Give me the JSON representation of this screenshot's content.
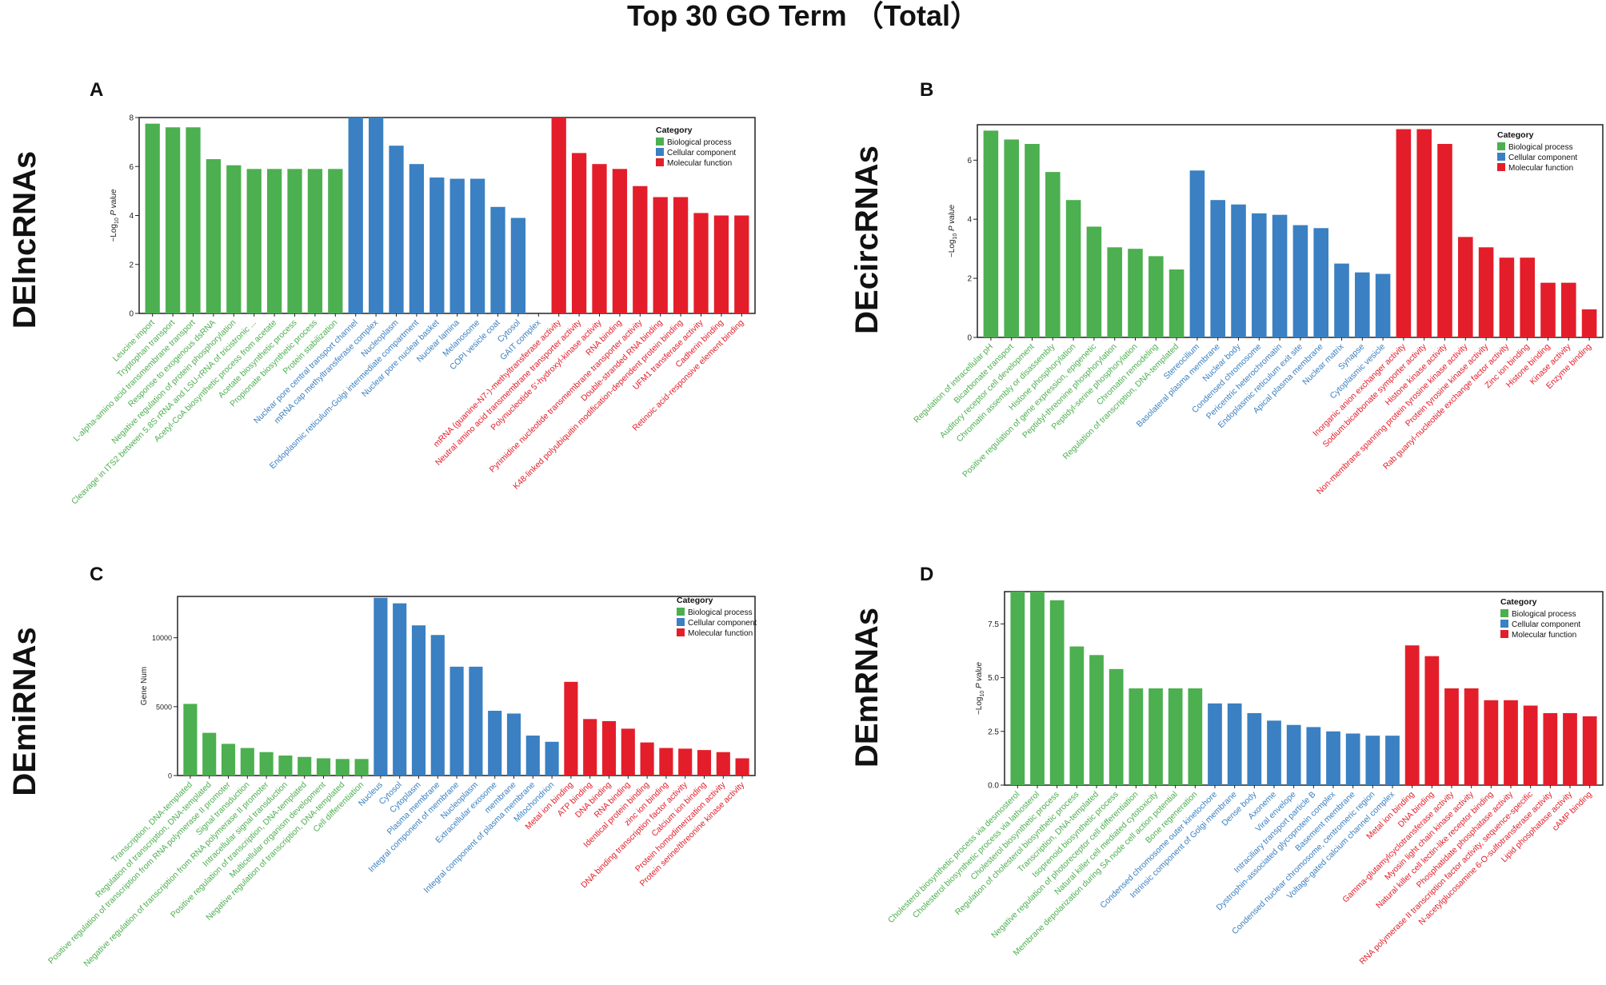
{
  "figure_title": "Top 30 GO Term （Total）",
  "colors": {
    "Biological process": "#4CAF50",
    "Cellular component": "#3A80C2",
    "Molecular function": "#E31E2A",
    "Cellular": "#3A80C2"
  },
  "chart_data": [
    {
      "type": "bar",
      "panel_label": "A",
      "side_label": "DElncRNAs",
      "ylabel_prefix": "−Log",
      "ylabel_sub": "10",
      "ylabel_suffix": " P value",
      "ylim": [
        0,
        8
      ],
      "yticks": [
        0,
        2,
        4,
        6,
        8
      ],
      "legend_title": "Category",
      "legend_items": [
        "Biological process",
        "Cellular component",
        "Molecular function"
      ],
      "categories": [
        "Leucine import",
        "Tryptophan transport",
        "L-alpha-amino acid transmembrane transport",
        "Response to exogenous dsRNA",
        "Negative regulation of protein phosphorylation",
        "Cleavage in ITS2 between 5.8S rRNA and LSU-rRNA of tricistronic ...",
        "Acetyl-CoA biosynthetic process from acetate",
        "Acetate biosynthetic process",
        "Propionate biosynthetic process",
        "Protein stabilization",
        "Nuclear pore central transport channel",
        "mRNA cap methyltransferase complex",
        "Nucleoplasm",
        "Endoplasmic reticulum-Golgi intermediate compartment",
        "Nuclear pore nuclear basket",
        "Nuclear lamina",
        "Melanosome",
        "COPI vesicle coat",
        "Cytosol",
        "GAIT complex",
        "mRNA (guanine-N7-)-methyltransferase activity",
        "Neutral amino acid transmembrane transporter activity",
        "Polynucleotide 5'-hydroxyl-kinase activity",
        "RNA binding",
        "Pyrimidine nucleotide transmembrane transporter activity",
        "Double-stranded RNA binding",
        "K48-linked polyubiquitin modification-dependent protein binding",
        "UFM1 transferase activity",
        "Cadherin binding",
        "Retinoic acid-responsive element binding"
      ],
      "values": [
        7.75,
        7.6,
        7.6,
        6.3,
        6.05,
        5.9,
        5.9,
        5.9,
        5.9,
        5.9,
        8.1,
        8.1,
        6.85,
        6.1,
        5.55,
        5.5,
        5.5,
        4.35,
        3.9,
        0,
        8.1,
        6.55,
        6.1,
        5.9,
        5.2,
        4.75,
        4.75,
        4.1,
        4.0,
        4.0
      ],
      "groups": [
        "Biological process",
        "Biological process",
        "Biological process",
        "Biological process",
        "Biological process",
        "Biological process",
        "Biological process",
        "Biological process",
        "Biological process",
        "Biological process",
        "Cellular component",
        "Cellular component",
        "Cellular component",
        "Cellular component",
        "Cellular component",
        "Cellular component",
        "Cellular component",
        "Cellular component",
        "Cellular component",
        "Cellular component",
        "Molecular function",
        "Molecular function",
        "Molecular function",
        "Molecular function",
        "Molecular function",
        "Molecular function",
        "Molecular function",
        "Molecular function",
        "Molecular function",
        "Molecular function"
      ]
    },
    {
      "type": "bar",
      "panel_label": "B",
      "side_label": "DEcircRNAs",
      "ylabel_prefix": "−Log",
      "ylabel_sub": "10",
      "ylabel_suffix": " P value",
      "ylim": [
        0,
        7.2
      ],
      "yticks": [
        0,
        2,
        4,
        6
      ],
      "legend_title": "Category",
      "legend_items": [
        "Biological process",
        "Cellular component",
        "Molecular function"
      ],
      "categories": [
        "Regulation of intracellular pH",
        "Bicarbonate transport",
        "Auditory receptor cell development",
        "Chromatin assembly or disassembly",
        "Histone phosphorylation",
        "Positive regulation of gene expression, epigenetic",
        "Peptidyl-threonine phosphorylation",
        "Peptidyl-serine phosphorylation",
        "Chromatin remodeling",
        "Regulation of transcription, DNA-templated",
        "Stereocilium",
        "Basolateral plasma membrane",
        "Nuclear body",
        "Condensed chromosome",
        "Pericentric heterochromatin",
        "Endoplasmic reticulum exit site",
        "Apical plasma membrane",
        "Nuclear matrix",
        "Synapse",
        "Cytoplasmic vesicle",
        "Inorganic anion exchanger activity",
        "Sodium:bicarbonate symporter activity",
        "Histone kinase activity",
        "Non-membrane spanning protein tyrosine kinase activity",
        "Protein tyrosine kinase activity",
        "Rab guanyl-nucleotide exchange factor activity",
        "Zinc ion binding",
        "Histone binding",
        "Kinase activity",
        "Enzyme binding"
      ],
      "values": [
        7.0,
        6.7,
        6.55,
        5.6,
        4.65,
        3.75,
        3.05,
        3.0,
        2.75,
        2.3,
        5.65,
        4.65,
        4.5,
        4.2,
        4.15,
        3.8,
        3.7,
        2.5,
        2.2,
        2.15,
        7.05,
        7.05,
        6.55,
        3.4,
        3.05,
        2.7,
        2.7,
        1.85,
        1.85,
        0.95
      ],
      "groups": [
        "Biological process",
        "Biological process",
        "Biological process",
        "Biological process",
        "Biological process",
        "Biological process",
        "Biological process",
        "Biological process",
        "Biological process",
        "Biological process",
        "Cellular component",
        "Cellular component",
        "Cellular component",
        "Cellular component",
        "Cellular component",
        "Cellular component",
        "Cellular component",
        "Cellular component",
        "Cellular component",
        "Cellular component",
        "Molecular function",
        "Molecular function",
        "Molecular function",
        "Molecular function",
        "Molecular function",
        "Molecular function",
        "Molecular function",
        "Molecular function",
        "Molecular function",
        "Molecular function"
      ]
    },
    {
      "type": "bar",
      "panel_label": "C",
      "side_label": "DEmiRNAs",
      "ylabel": "Gene Num",
      "ylim": [
        0,
        13000
      ],
      "yticks": [
        0,
        5000,
        10000
      ],
      "legend_title": "Category",
      "legend_items": [
        "Biological process",
        "Cellular component",
        "Molecular function"
      ],
      "categories": [
        "Transcription, DNA-templated",
        "Regulation of transcription, DNA-templated",
        "Positive regulation of transcription from RNA polymerase II promoter",
        "Signal transduction",
        "Negative regulation of transcription from RNA polymerase II promoter",
        "Intracellular signal transduction",
        "Positive regulation of transcription, DNA-templated",
        "Multicellular organism development",
        "Negative regulation of transcription, DNA-templated",
        "Cell differentiation",
        "Nucleus",
        "Cytosol",
        "Cytoplasm",
        "Plasma membrane",
        "Integral component of membrane",
        "Nucleoplasm",
        "Extracellular exosome",
        "membrane",
        "Integral component of plasma membrane",
        "Mitochondrion",
        "Metal ion binding",
        "ATP binding",
        "DNA binding",
        "RNA binding",
        "Identical protein binding",
        "zinc ion binding",
        "DNA binding transcription factor activity",
        "Calcium ion binding",
        "Protein homodimerization activity",
        "Protein serine/threonine kinase activity"
      ],
      "values": [
        5200,
        3100,
        2300,
        2000,
        1700,
        1450,
        1350,
        1250,
        1200,
        1200,
        12900,
        12500,
        10900,
        10200,
        7900,
        7900,
        4700,
        4500,
        2900,
        2450,
        6800,
        4100,
        3950,
        3400,
        2400,
        2000,
        1950,
        1850,
        1700,
        1250
      ],
      "groups": [
        "Biological process",
        "Biological process",
        "Biological process",
        "Biological process",
        "Biological process",
        "Biological process",
        "Biological process",
        "Biological process",
        "Biological process",
        "Biological process",
        "Cellular component",
        "Cellular component",
        "Cellular component",
        "Cellular component",
        "Cellular component",
        "Cellular component",
        "Cellular component",
        "Cellular component",
        "Cellular component",
        "Cellular component",
        "Molecular function",
        "Molecular function",
        "Molecular function",
        "Molecular function",
        "Molecular function",
        "Molecular function",
        "Molecular function",
        "Molecular function",
        "Molecular function",
        "Molecular function"
      ]
    },
    {
      "type": "bar",
      "panel_label": "D",
      "side_label": "DEmRNAs",
      "ylabel_prefix": "−Log",
      "ylabel_sub": "10",
      "ylabel_suffix": " P value",
      "ylim": [
        0,
        9.0
      ],
      "yticks": [
        0.0,
        2.5,
        5.0,
        7.5
      ],
      "ytick_labels": [
        "0.0",
        "2.5",
        "5.0",
        "7.5"
      ],
      "legend_title": "Category",
      "legend_items": [
        "Biological process",
        "Cellular component",
        "Molecular function"
      ],
      "categories": [
        "Cholesterol biosynthetic process via desmosterol",
        "Cholesterol biosynthetic process via lathosterol",
        "Cholesterol biosynthetic process",
        "Regulation of cholesterol biosynthetic process",
        "Transcription, DNA-templated",
        "Isoprenoid biosynthetic process",
        "Negative regulation of photoreceptor cell differentiation",
        "Natural killer cell mediated cytotoxicity",
        "Membrane depolarization during SA node cell action potential",
        "Bone regeneration",
        "Condensed chromosome outer kinetochore",
        "Intrinsic component of Golgi membrane",
        "Dense body",
        "Axoneme",
        "Viral envelope",
        "Intraciliary transport particle B",
        "Dystrophin-associated glycoprotein complex",
        "Basement membrane",
        "Condensed nuclear chromosome, centromeric region",
        "Voltage-gated calcium channel complex",
        "Metal ion binding",
        "DNA binding",
        "Gamma-glutamylcyclotransferase activity",
        "Myosin light chain kinase activity",
        "Natural killer cell lectin-like receptor binding",
        "Phosphatidate phosphatase activity",
        "RNA polymerase II transcription factor activity, sequence-specific",
        "N-acetylglucosamine 6-O-sulfotransferase activity",
        "Lipid phosphatase activity",
        "cAMP binding"
      ],
      "values": [
        9.0,
        9.0,
        8.6,
        6.45,
        6.05,
        5.4,
        4.5,
        4.5,
        4.5,
        4.5,
        3.8,
        3.8,
        3.35,
        3.0,
        2.8,
        2.7,
        2.5,
        2.4,
        2.3,
        2.3,
        6.5,
        6.0,
        4.5,
        4.5,
        3.95,
        3.95,
        3.7,
        3.35,
        3.35,
        3.2
      ],
      "groups": [
        "Biological process",
        "Biological process",
        "Biological process",
        "Biological process",
        "Biological process",
        "Biological process",
        "Biological process",
        "Biological process",
        "Biological process",
        "Biological process",
        "Cellular component",
        "Cellular component",
        "Cellular component",
        "Cellular component",
        "Cellular component",
        "Cellular component",
        "Cellular component",
        "Cellular component",
        "Cellular component",
        "Cellular component",
        "Molecular function",
        "Molecular function",
        "Molecular function",
        "Molecular function",
        "Molecular function",
        "Molecular function",
        "Molecular function",
        "Molecular function",
        "Molecular function",
        "Molecular function"
      ]
    }
  ]
}
